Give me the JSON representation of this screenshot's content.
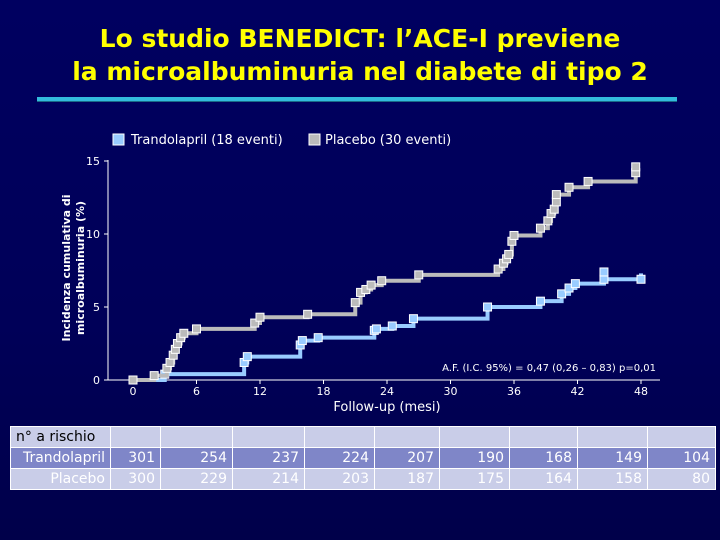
{
  "title": {
    "line1": "Lo studio BENEDICT: l’ACE-I previene",
    "line2": "la microalbuminuria nel diabete di tipo 2"
  },
  "colors": {
    "title": "#ffff00",
    "rule": "#33bbdd",
    "trandolapril": "#99ccff",
    "placebo": "#bbbbbb",
    "axis": "#ffffff"
  },
  "chart_data": {
    "type": "line",
    "xlabel": "Follow-up",
    "xlabel_unit": "(mesi)",
    "ylabel_line1": "Incidenza cumulativa di",
    "ylabel_line2": "microalbuminuria (%)",
    "xlim": [
      0,
      48
    ],
    "ylim": [
      0,
      15
    ],
    "xticks": [
      0,
      6,
      12,
      18,
      24,
      30,
      36,
      42,
      48
    ],
    "yticks": [
      0,
      5,
      10,
      15
    ],
    "grid": false,
    "legend_position": "top",
    "annotation": "A.F. (I.C. 95%) = 0,47 (0,26 – 0,83) p=0,01",
    "series": [
      {
        "name": "Trandolapril",
        "legend_suffix": "(18 eventi)",
        "points": [
          [
            0,
            0
          ],
          [
            3,
            0.4
          ],
          [
            10.5,
            1.2
          ],
          [
            10.8,
            1.6
          ],
          [
            15.8,
            2.4
          ],
          [
            16,
            2.7
          ],
          [
            17.5,
            2.9
          ],
          [
            22.8,
            3.4
          ],
          [
            23,
            3.5
          ],
          [
            24.5,
            3.7
          ],
          [
            26.5,
            4.2
          ],
          [
            33.5,
            5.0
          ],
          [
            38.5,
            5.4
          ],
          [
            40.5,
            5.9
          ],
          [
            41.2,
            6.3
          ],
          [
            41.8,
            6.6
          ],
          [
            44.5,
            6.9
          ],
          [
            48,
            6.9
          ]
        ],
        "end": [
          48,
          7.3
        ],
        "extra_markers": [
          [
            44.5,
            7.4
          ]
        ]
      },
      {
        "name": "Placebo",
        "legend_suffix": "(30 eventi)",
        "points": [
          [
            0,
            0
          ],
          [
            2,
            0.3
          ],
          [
            3.2,
            0.8
          ],
          [
            3.5,
            1.2
          ],
          [
            3.8,
            1.7
          ],
          [
            4,
            2.1
          ],
          [
            4.2,
            2.5
          ],
          [
            4.5,
            2.9
          ],
          [
            4.8,
            3.2
          ],
          [
            6,
            3.5
          ],
          [
            11.5,
            3.9
          ],
          [
            12,
            4.3
          ],
          [
            16.5,
            4.5
          ],
          [
            21,
            5.3
          ],
          [
            21.5,
            6.0
          ],
          [
            22,
            6.2
          ],
          [
            22.5,
            6.5
          ],
          [
            23.5,
            6.8
          ],
          [
            27,
            7.2
          ],
          [
            34.5,
            7.6
          ],
          [
            35,
            8.0
          ],
          [
            35.3,
            8.3
          ],
          [
            35.5,
            8.6
          ],
          [
            35.8,
            9.5
          ],
          [
            36,
            9.9
          ],
          [
            38.5,
            10.4
          ],
          [
            39.2,
            10.9
          ],
          [
            39.5,
            11.4
          ],
          [
            39.8,
            11.7
          ],
          [
            40,
            12.2
          ],
          [
            40,
            12.7
          ],
          [
            41.2,
            13.2
          ],
          [
            43,
            13.6
          ],
          [
            47.5,
            14.2
          ],
          [
            47.5,
            14.6
          ]
        ],
        "end": [
          47.5,
          13.7
        ]
      }
    ]
  },
  "risk_table": {
    "header": "n° a rischio",
    "rows": [
      {
        "label": "Trandolapril",
        "values": [
          "301",
          "254",
          "237",
          "224",
          "207",
          "190",
          "168",
          "149",
          "104"
        ]
      },
      {
        "label": "Placebo",
        "values": [
          "300",
          "229",
          "214",
          "203",
          "187",
          "175",
          "164",
          "158",
          "80"
        ]
      }
    ]
  }
}
